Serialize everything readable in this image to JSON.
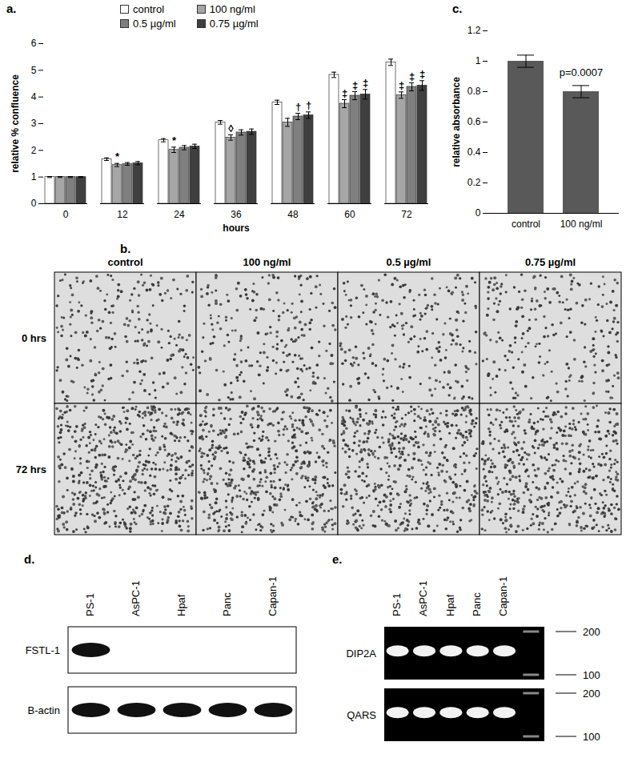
{
  "chart_data": [
    {
      "type": "bar",
      "label": "a.",
      "x": [
        0,
        12,
        24,
        36,
        48,
        60,
        72
      ],
      "xlabel": "hours",
      "ylabel": "relative % confluence",
      "ylim": [
        0,
        6
      ],
      "yticks": [
        0,
        1,
        2,
        3,
        4,
        5,
        6
      ],
      "legend": "top",
      "series": [
        {
          "name": "control",
          "color": "#ffffff",
          "values": [
            1,
            1.67,
            2.38,
            3.05,
            3.8,
            4.83,
            5.3
          ],
          "errors": [
            0.02,
            0.05,
            0.06,
            0.07,
            0.08,
            0.1,
            0.12
          ]
        },
        {
          "name": "100 ng/ml",
          "color": "#a6a6a6",
          "values": [
            1,
            1.45,
            2.02,
            2.48,
            3.05,
            3.75,
            4.07
          ],
          "errors": [
            0.02,
            0.06,
            0.1,
            0.1,
            0.15,
            0.15,
            0.12
          ]
        },
        {
          "name": "0.5 µg/ml",
          "color": "#7f7f7f",
          "values": [
            1,
            1.49,
            2.1,
            2.67,
            3.27,
            4.05,
            4.38
          ],
          "errors": [
            0.02,
            0.05,
            0.08,
            0.1,
            0.12,
            0.15,
            0.15
          ]
        },
        {
          "name": "0.75 µg/ml",
          "color": "#3f3f3f",
          "values": [
            1,
            1.52,
            2.15,
            2.7,
            3.32,
            4.1,
            4.43
          ],
          "errors": [
            0.02,
            0.06,
            0.08,
            0.1,
            0.12,
            0.18,
            0.18
          ]
        }
      ],
      "annotations": [
        {
          "x": 12,
          "series": "100 ng/ml",
          "text": "*"
        },
        {
          "x": 24,
          "series": "100 ng/ml",
          "text": "*"
        },
        {
          "x": 36,
          "series": "100 ng/ml",
          "text": "◊"
        },
        {
          "x": 48,
          "series": "0.5 µg/ml",
          "text": "†"
        },
        {
          "x": 48,
          "series": "0.75 µg/ml",
          "text": "†"
        },
        {
          "x": 60,
          "series": "100 ng/ml",
          "text": "‡"
        },
        {
          "x": 60,
          "series": "0.5 µg/ml",
          "text": "‡"
        },
        {
          "x": 60,
          "series": "0.75 µg/ml",
          "text": "‡"
        },
        {
          "x": 72,
          "series": "100 ng/ml",
          "text": "‡"
        },
        {
          "x": 72,
          "series": "0.5 µg/ml",
          "text": "‡"
        },
        {
          "x": 72,
          "series": "0.75 µg/ml",
          "text": "‡"
        }
      ]
    },
    {
      "type": "bar",
      "label": "c.",
      "categories": [
        "control",
        "100 ng/ml"
      ],
      "values": [
        1,
        0.8
      ],
      "errors": [
        0.04,
        0.04
      ],
      "color": "#595959",
      "ylabel": "relative absorbance",
      "ylim": [
        0,
        1.2
      ],
      "yticks": [
        0,
        0.2,
        0.4,
        0.6,
        0.8,
        1,
        1.2
      ],
      "annotations": [
        {
          "x": "100 ng/ml",
          "text": "p=0.0007"
        }
      ]
    }
  ],
  "micrographs": {
    "label": "b.",
    "columns": [
      "control",
      "100 ng/ml",
      "0.5 µg/ml",
      "0.75 µg/ml"
    ],
    "rows": [
      "0 hrs",
      "72 hrs"
    ]
  },
  "western_blot": {
    "label": "d.",
    "lanes": [
      "PS-1",
      "AsPC-1",
      "Hpaf",
      "Panc",
      "Capan-1"
    ],
    "rows": [
      {
        "label": "FSTL-1",
        "bands": [
          true,
          false,
          false,
          false,
          false
        ]
      },
      {
        "label": "B-actin",
        "bands": [
          true,
          true,
          true,
          true,
          true
        ]
      }
    ]
  },
  "gel": {
    "label": "e.",
    "lanes": [
      "PS-1",
      "AsPC-1",
      "Hpaf",
      "Panc",
      "Capan-1"
    ],
    "rows": [
      {
        "label": "DIP2A",
        "bands": [
          true,
          true,
          true,
          true,
          true
        ]
      },
      {
        "label": "QARS",
        "bands": [
          true,
          true,
          true,
          true,
          true
        ]
      }
    ],
    "ladder": [
      200,
      100
    ]
  }
}
